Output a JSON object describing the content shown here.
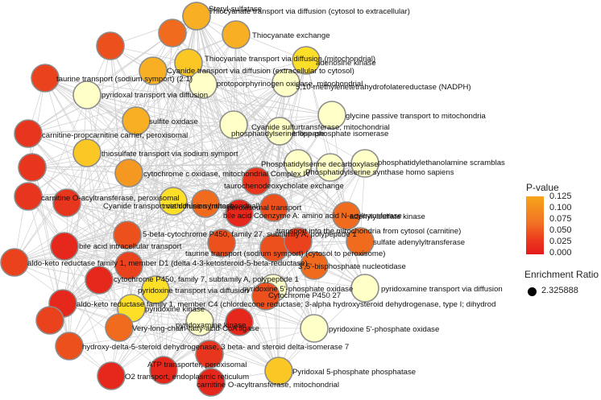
{
  "legend": {
    "pvalue_title": "P-value",
    "pvalue_ticks": [
      "0.125",
      "0.100",
      "0.075",
      "0.050",
      "0.025",
      "0.000"
    ],
    "enrichment_title": "Enrichment Ratio",
    "enrichment_value": "2.325888"
  },
  "colors": {
    "high_pvalue": "#f6a51a",
    "low_pvalue": "#e41a1c",
    "near_one": "#ffffe0",
    "node_border": "#8c8c8c",
    "edge": "#d0d0d0"
  },
  "nodes": [
    {
      "label": "Steryl-sulfatase",
      "pvalue": 0.08
    },
    {
      "label": "Thiocyanate transport via diffusion (cytosol to extracellular)",
      "pvalue": 0.09
    },
    {
      "label": "Thiocyanate exchange",
      "pvalue": 0.09
    },
    {
      "label": "taurine transport (sodium symport) (2:1)",
      "pvalue": 0.03
    },
    {
      "label": "Thiocyanate transport via diffusion (mitochondrial)",
      "pvalue": 0.1
    },
    {
      "label": "Cyanide transport via diffusion (extracellular to cytosol)",
      "pvalue": 0.09
    },
    {
      "label": "adenosine kinase",
      "pvalue": 0.11
    },
    {
      "label": "pyridoxal transport via diffusion",
      "pvalue": 0.12
    },
    {
      "label": "protoporphyrinogen oxidase, mitochondrial",
      "pvalue": 0.12
    },
    {
      "label": "5,10-methylenetetrahydrofolatereductase (NADPH)",
      "pvalue": 0.12
    },
    {
      "label": "sulfite oxidase",
      "pvalue": 0.09
    },
    {
      "label": "Cyanide sulfurtransferase, mitochondrial",
      "pvalue": 0.125
    },
    {
      "label": "glycine passive transport to mitochondria",
      "pvalue": 0.125
    },
    {
      "label": "carnitine-propcarnitine carrier, peroxisomal",
      "pvalue": 0.02
    },
    {
      "label": "triose-phosphate isomerase",
      "pvalue": 0.125
    },
    {
      "label": "phosphatidylserine flippase",
      "pvalue": 0.125
    },
    {
      "label": "thiosulfate transport via sodium symport",
      "pvalue": 0.1
    },
    {
      "label": "Phosphatidylserine decarboxylase",
      "pvalue": 0.125
    },
    {
      "label": "phosphatidylethanolamine scramblas",
      "pvalue": 0.12
    },
    {
      "label": "Phosphatidylserine synthase homo sapiens",
      "pvalue": 0.12
    },
    {
      "label": "cytochrome c oxidase, mitochondrial Complex IV",
      "pvalue": 0.08
    },
    {
      "label": "taurochenodeoxycholate exchange",
      "pvalue": 0.02
    },
    {
      "label": "carnitine O-acyltransferase, peroxisomal",
      "pvalue": 0.02
    },
    {
      "label": "Cyanide transport via diffusion (mitochondrial)",
      "pvalue": 0.11
    },
    {
      "label": "methionine synthase",
      "pvalue": 0.06
    },
    {
      "label": "bile acid Coenzyme A: amino acid N-acyltransferase",
      "pvalue": 0.01
    },
    {
      "label": "peroxisomal transport",
      "pvalue": 0.04
    },
    {
      "label": "adenylylsulfate kinase",
      "pvalue": 0.06
    },
    {
      "label": "5-beta-cytochrome P450, family 27, subfamily A, polypeptide 1",
      "pvalue": 0.04
    },
    {
      "label": "bile acid intracellular transport",
      "pvalue": 0.01
    },
    {
      "label": "taurine transport (sodium symport) (cytosol to peroxisome)",
      "pvalue": 0.04
    },
    {
      "label": "transport into the mitochondria from cytosol (carnitine)",
      "pvalue": 0.03
    },
    {
      "label": "sulfate adenylyltransferase",
      "pvalue": 0.06
    },
    {
      "label": "aldo-keto reductase family 1, member D1 (delta 4-3-ketosteroid-5-beta-reductase)",
      "pvalue": 0.03
    },
    {
      "label": "3',5'-bisphosphate nucleotidase",
      "pvalue": 0.06
    },
    {
      "label": "cytochrome P450, family 7, subfamily A, polypeptide 1",
      "pvalue": 0.01
    },
    {
      "label": "pyridoxine transport via diffusion",
      "pvalue": 0.11
    },
    {
      "label": "pyridoxine 5'-phosphate oxidase",
      "pvalue": 0.12
    },
    {
      "label": "pyridoxamine transport via diffusion",
      "pvalue": 0.12
    },
    {
      "label": "Cytochrome P450 27",
      "pvalue": 0.04
    },
    {
      "label": "aldo-keto reductase family 1, member C4 (chlordecone reductase; 3-alpha hydroxysteroid dehydrogenase, type I; dihydrod",
      "pvalue": 0.01
    },
    {
      "label": "pyridoxine kinase",
      "pvalue": 0.11
    },
    {
      "label": "pyridoxamine kinase",
      "pvalue": 0.12
    },
    {
      "label": "Very-long-chain-fatty-acid-CoA ligase",
      "pvalue": 0.06
    },
    {
      "label": "pyridoxine 5'-phosphate oxidase",
      "pvalue": 0.12
    },
    {
      "label": "hydroxy-delta-5-steroid dehydrogenase, 3 beta- and steroid delta-isomerase 7",
      "pvalue": 0.04
    },
    {
      "label": "ATP transporter, peroxisomal",
      "pvalue": 0.01
    },
    {
      "label": "O2 transport, endoplasmic reticulum",
      "pvalue": 0.01
    },
    {
      "label": "Pyridoxal 5-phosphate phosphatase",
      "pvalue": 0.1
    },
    {
      "label": "carnitine O-acyltransferase, mitochondrial",
      "pvalue": 0.01
    },
    {
      "label": "",
      "pvalue": 0.06
    },
    {
      "label": "",
      "pvalue": 0.04
    },
    {
      "label": "",
      "pvalue": 0.03
    },
    {
      "label": "",
      "pvalue": 0.02
    },
    {
      "label": "",
      "pvalue": 0.02
    },
    {
      "label": "",
      "pvalue": 0.04
    },
    {
      "label": "",
      "pvalue": 0.01
    },
    {
      "label": "",
      "pvalue": 0.03
    },
    {
      "label": "",
      "pvalue": 0.02
    }
  ]
}
